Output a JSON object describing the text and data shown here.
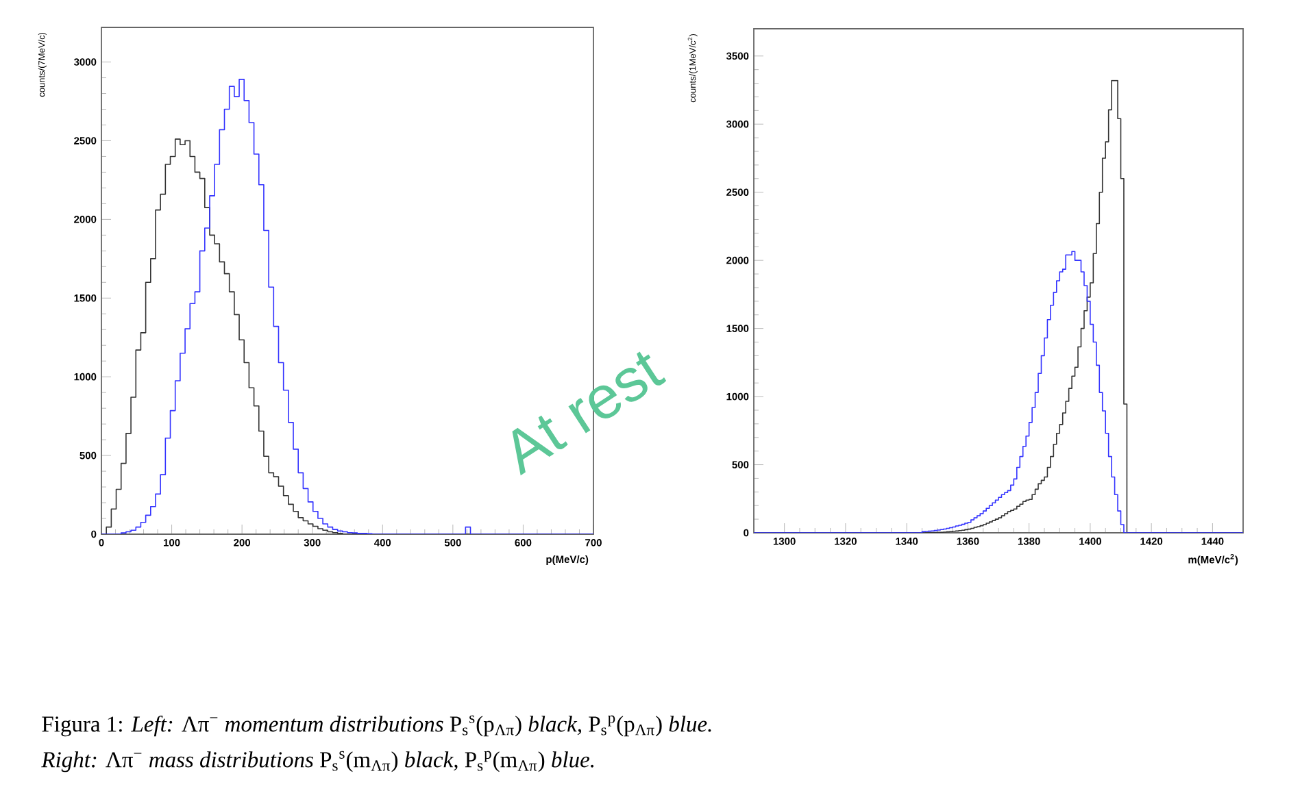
{
  "chart_data": [
    {
      "type": "histogram",
      "xlabel": "p(MeV/c)",
      "ylabel": "counts/(7MeV/c)",
      "xlim": [
        0,
        700
      ],
      "ylim": [
        0,
        3220
      ],
      "xticks": [
        0,
        100,
        200,
        300,
        400,
        500,
        600,
        700
      ],
      "yticks": [
        0,
        500,
        1000,
        1500,
        2000,
        2500,
        3000
      ],
      "bins": [
        0,
        7,
        14,
        21,
        28,
        35,
        42,
        49,
        56,
        63,
        70,
        77,
        84,
        91,
        98,
        105,
        112,
        119,
        126,
        133,
        140,
        147,
        154,
        161,
        168,
        175,
        182,
        189,
        196,
        203,
        210,
        217,
        224,
        231,
        238,
        245,
        252,
        259,
        266,
        273,
        280,
        287,
        294,
        301,
        308,
        315,
        322,
        329,
        336,
        343,
        350,
        357,
        364,
        371,
        378,
        385,
        518,
        525,
        700
      ],
      "series": [
        {
          "color": "#333333",
          "values": [
            0,
            45,
            160,
            285,
            450,
            640,
            870,
            1170,
            1280,
            1600,
            1750,
            2060,
            2160,
            2350,
            2400,
            2510,
            2475,
            2500,
            2400,
            2300,
            2260,
            2075,
            1900,
            1845,
            1730,
            1655,
            1540,
            1395,
            1235,
            1090,
            930,
            815,
            655,
            495,
            390,
            365,
            305,
            245,
            190,
            145,
            105,
            85,
            65,
            50,
            35,
            25,
            15,
            10,
            5,
            0,
            0,
            0,
            0,
            0,
            0,
            0,
            0,
            0
          ]
        },
        {
          "color": "#3333ff",
          "values": [
            0,
            0,
            0,
            0,
            8,
            15,
            25,
            45,
            75,
            120,
            175,
            255,
            378,
            610,
            785,
            975,
            1150,
            1305,
            1465,
            1540,
            1800,
            1945,
            2150,
            2350,
            2570,
            2700,
            2845,
            2780,
            2890,
            2755,
            2615,
            2415,
            2220,
            1930,
            1570,
            1320,
            1090,
            915,
            710,
            540,
            390,
            290,
            205,
            145,
            100,
            65,
            45,
            30,
            20,
            15,
            10,
            8,
            5,
            5,
            3,
            0,
            45,
            0
          ]
        }
      ],
      "annotations": [
        "At rest",
        "Figura 1: *Left:* Λπ$^{−}$ *momentum distributions* P$_{s}$$^{s}$(p$_{Λπ}$) *black,* P$_{s}$$^{p}$(p$_{Λπ}$) *blue.*",
        "*Right:* Λπ$^{−}$ *mass distributions* P$_{s}$$^{s}$(m$_{Λπ}$) *black,* P$_{s}$$^{p}$(m$_{Λπ}$) *blue.*"
      ]
    },
    {
      "type": "histogram",
      "xlabel": "m(MeV/c$^{2}$)",
      "ylabel": "counts/(1MeV/c$^{2}$)",
      "xlim": [
        1290,
        1450
      ],
      "ylim": [
        0,
        3700
      ],
      "xticks": [
        1300,
        1320,
        1340,
        1360,
        1380,
        1400,
        1420,
        1440
      ],
      "yticks": [
        0,
        500,
        1000,
        1500,
        2000,
        2500,
        3000,
        3500
      ],
      "bins": [
        1290,
        1345,
        1346,
        1347,
        1348,
        1349,
        1350,
        1351,
        1352,
        1353,
        1354,
        1355,
        1356,
        1357,
        1358,
        1359,
        1360,
        1361,
        1362,
        1363,
        1364,
        1365,
        1366,
        1367,
        1368,
        1369,
        1370,
        1371,
        1372,
        1373,
        1374,
        1375,
        1376,
        1377,
        1378,
        1379,
        1380,
        1381,
        1382,
        1383,
        1384,
        1385,
        1386,
        1387,
        1388,
        1389,
        1390,
        1391,
        1392,
        1393,
        1394,
        1395,
        1396,
        1397,
        1398,
        1399,
        1400,
        1401,
        1402,
        1403,
        1404,
        1405,
        1406,
        1407,
        1408,
        1409,
        1410,
        1411,
        1412,
        1450
      ],
      "series": [
        {
          "color": "#333333",
          "values": [
            0,
            1,
            1,
            2,
            2,
            2,
            3,
            4,
            5,
            7,
            9,
            11,
            13,
            16,
            19,
            23,
            27,
            33,
            40,
            45,
            52,
            60,
            70,
            80,
            90,
            100,
            110,
            125,
            140,
            155,
            165,
            175,
            195,
            210,
            230,
            240,
            245,
            280,
            320,
            360,
            385,
            410,
            480,
            560,
            650,
            730,
            795,
            880,
            965,
            1060,
            1150,
            1215,
            1365,
            1500,
            1630,
            1730,
            1835,
            2050,
            2270,
            2500,
            2750,
            2870,
            3105,
            3320,
            3320,
            3040,
            2600,
            945,
            0
          ]
        },
        {
          "color": "#3333ff",
          "values": [
            0,
            8,
            10,
            12,
            14,
            17,
            20,
            24,
            28,
            33,
            38,
            43,
            50,
            55,
            62,
            70,
            77,
            95,
            110,
            125,
            140,
            160,
            180,
            200,
            220,
            240,
            260,
            280,
            295,
            310,
            350,
            395,
            480,
            560,
            635,
            710,
            810,
            920,
            1030,
            1170,
            1300,
            1430,
            1565,
            1670,
            1765,
            1850,
            1915,
            1935,
            2040,
            2040,
            2065,
            2000,
            2000,
            1915,
            1815,
            1700,
            1530,
            1400,
            1230,
            1030,
            895,
            730,
            560,
            410,
            280,
            160,
            60,
            0,
            0
          ]
        }
      ]
    }
  ]
}
